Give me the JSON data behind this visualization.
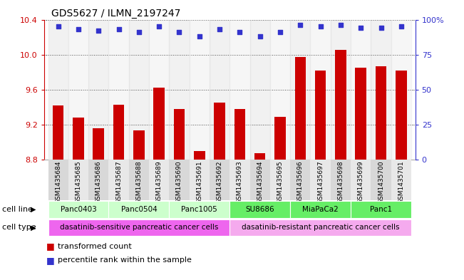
{
  "title": "GDS5627 / ILMN_2197247",
  "samples": [
    "GSM1435684",
    "GSM1435685",
    "GSM1435686",
    "GSM1435687",
    "GSM1435688",
    "GSM1435689",
    "GSM1435690",
    "GSM1435691",
    "GSM1435692",
    "GSM1435693",
    "GSM1435694",
    "GSM1435695",
    "GSM1435696",
    "GSM1435697",
    "GSM1435698",
    "GSM1435699",
    "GSM1435700",
    "GSM1435701"
  ],
  "bar_values": [
    9.42,
    9.28,
    9.16,
    9.43,
    9.13,
    9.62,
    9.38,
    8.9,
    9.45,
    9.38,
    8.87,
    9.29,
    9.97,
    9.82,
    10.05,
    9.85,
    9.87,
    9.82
  ],
  "percentile_values": [
    95,
    93,
    92,
    93,
    91,
    95,
    91,
    88,
    93,
    91,
    88,
    91,
    96,
    95,
    96,
    94,
    94,
    95
  ],
  "bar_color": "#cc0000",
  "percentile_color": "#3333cc",
  "ylim_left": [
    8.8,
    10.4
  ],
  "ylim_right": [
    0,
    100
  ],
  "yticks_left": [
    8.8,
    9.2,
    9.6,
    10.0,
    10.4
  ],
  "yticks_right": [
    0,
    25,
    50,
    75,
    100
  ],
  "ytick_labels_right": [
    "0",
    "25",
    "50",
    "75",
    "100%"
  ],
  "cell_lines": [
    {
      "label": "Panc0403",
      "start": 0,
      "end": 3,
      "color": "#ccffcc"
    },
    {
      "label": "Panc0504",
      "start": 3,
      "end": 6,
      "color": "#ccffcc"
    },
    {
      "label": "Panc1005",
      "start": 6,
      "end": 9,
      "color": "#ccffcc"
    },
    {
      "label": "SU8686",
      "start": 9,
      "end": 12,
      "color": "#66ee66"
    },
    {
      "label": "MiaPaCa2",
      "start": 12,
      "end": 15,
      "color": "#66ee66"
    },
    {
      "label": "Panc1",
      "start": 15,
      "end": 18,
      "color": "#66ee66"
    }
  ],
  "cell_types": [
    {
      "label": "dasatinib-sensitive pancreatic cancer cells",
      "start": 0,
      "end": 9,
      "color": "#ee66ee"
    },
    {
      "label": "dasatinib-resistant pancreatic cancer cells",
      "start": 9,
      "end": 18,
      "color": "#f5aaee"
    }
  ],
  "legend_items": [
    {
      "label": "transformed count",
      "color": "#cc0000",
      "marker": "s"
    },
    {
      "label": "percentile rank within the sample",
      "color": "#3333cc",
      "marker": "s"
    }
  ],
  "cell_line_label": "cell line",
  "cell_type_label": "cell type",
  "left_axis_color": "#cc0000",
  "right_axis_color": "#3333cc",
  "col_bg_even": "#d8d8d8",
  "col_bg_odd": "#e8e8e8"
}
